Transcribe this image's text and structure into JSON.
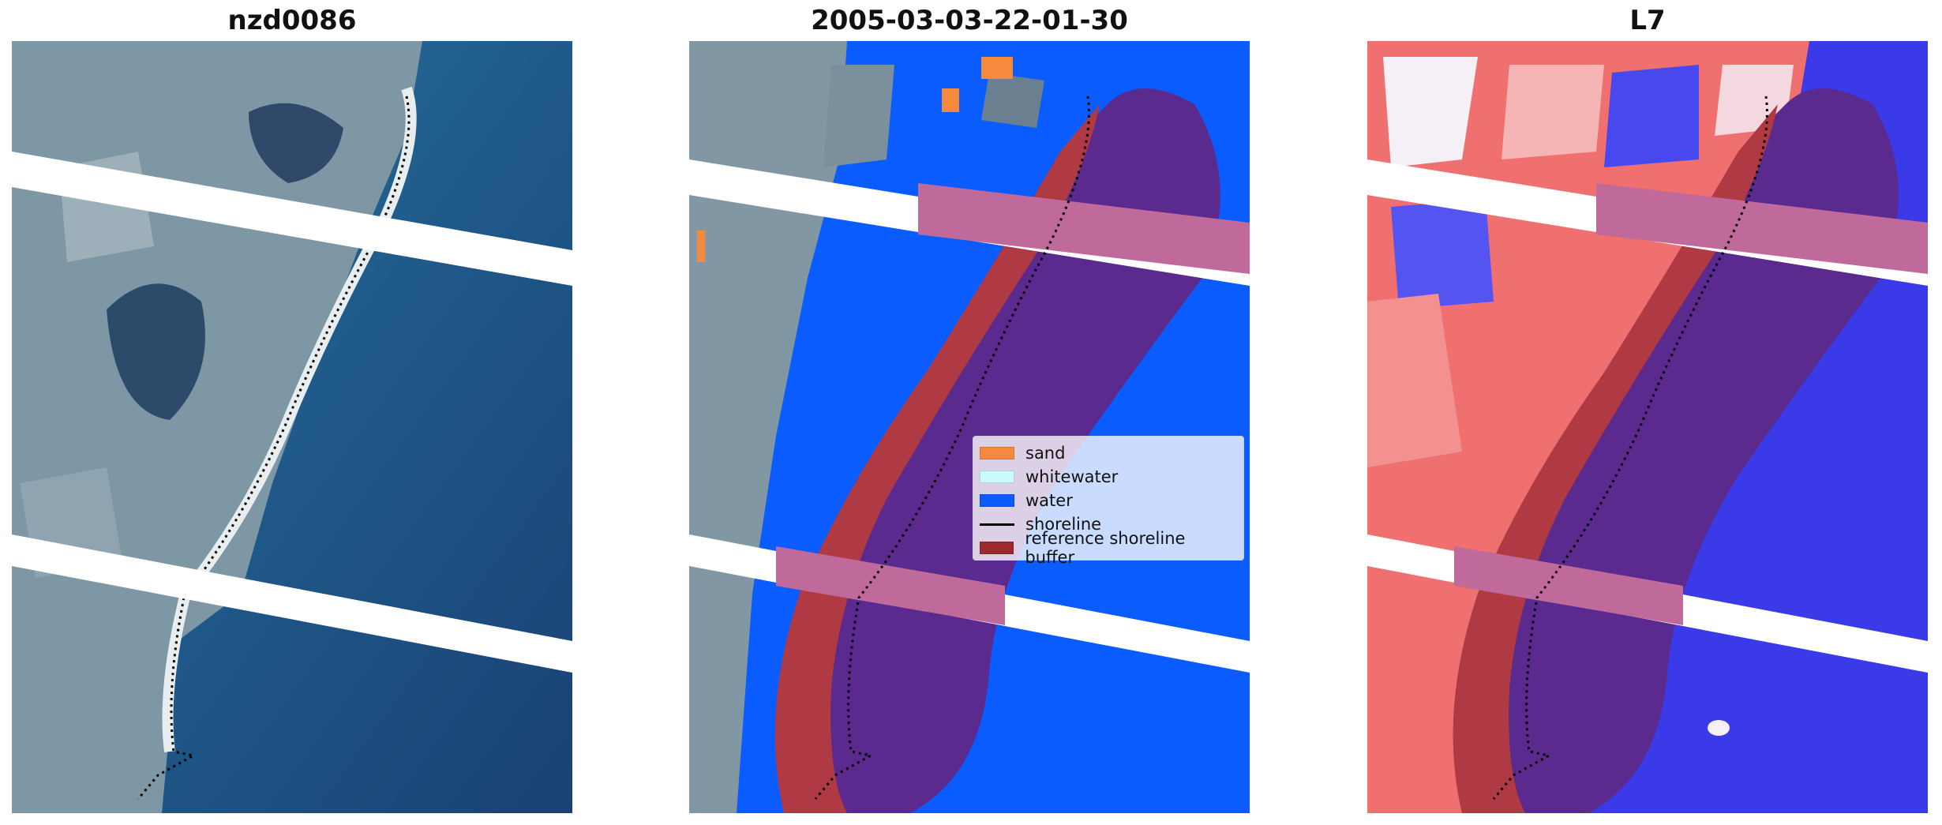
{
  "panels": [
    {
      "title": "nzd0086"
    },
    {
      "title": "2005-03-03-22-01-30"
    },
    {
      "title": "L7"
    }
  ],
  "legend": {
    "items": [
      {
        "label": "sand",
        "color": "#f58a3c",
        "kind": "patch"
      },
      {
        "label": "whitewater",
        "color": "#ccfbff",
        "kind": "patch"
      },
      {
        "label": "water",
        "color": "#0a5cff",
        "kind": "patch"
      },
      {
        "label": "shoreline",
        "color": "#000000",
        "kind": "line"
      },
      {
        "label": "reference shoreline buffer",
        "color": "#9b2a2f",
        "kind": "patch"
      }
    ]
  },
  "colors": {
    "sea_dark": "#1d4a7d",
    "sea_light": "#2f7fa8",
    "land_gray": "#7e98a6",
    "land_dark": "#2f4a6b",
    "beach_white": "#e8eef0",
    "water_class": "#0a5cff",
    "sand_class": "#f58a3c",
    "buffer_land": "#b03a44",
    "buffer_water": "#5a2a8f",
    "gap_band": "#ffffff",
    "mndwi_red": "#f06a6a",
    "mndwi_blue": "#3a3ae8",
    "mndwi_white": "#f4f0f6"
  }
}
